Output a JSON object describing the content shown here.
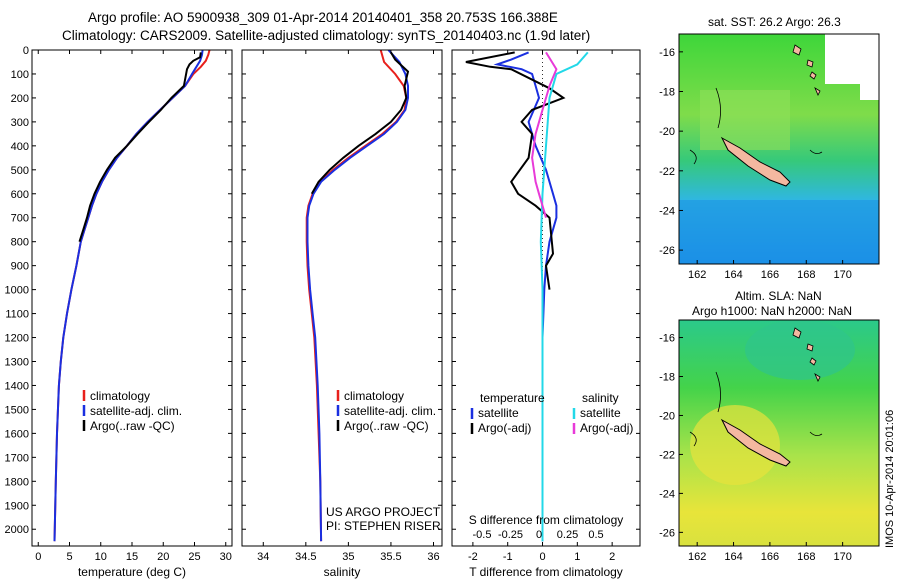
{
  "header": {
    "line1": "Argo profile: AO 5900938_309 01-Apr-2014 20140401_358 20.753S 166.388E",
    "line2": "Climatology: CARS2009. Satellite-adjusted climatology: synTS_20140403.nc (1.9d later)"
  },
  "colors": {
    "climatology": "#e8201c",
    "satellite": "#1a2fe0",
    "argo": "#000000",
    "sat_salinity": "#22d8e8",
    "argo_salinity_adj": "#e83ad8"
  },
  "chart_data": [
    {
      "id": "temperature",
      "type": "line",
      "xlabel": "temperature (deg C)",
      "ylabel": "",
      "xlim": [
        -1,
        31
      ],
      "ylim": [
        0,
        2070
      ],
      "xticks": [
        0,
        5,
        10,
        15,
        20,
        25,
        30
      ],
      "yticks": [
        0,
        100,
        200,
        300,
        400,
        500,
        600,
        700,
        800,
        900,
        1000,
        1100,
        1200,
        1300,
        1400,
        1500,
        1600,
        1700,
        1800,
        1900,
        2000
      ],
      "legend": [
        "climatology",
        "satellite-adj. clim.",
        "Argo(..raw -QC)"
      ],
      "series": [
        {
          "name": "climatology",
          "color": "#e8201c",
          "x": [
            27.4,
            27.2,
            26.8,
            26,
            24.8,
            23.5,
            21.5,
            19.5,
            17.5,
            15.7,
            14.2,
            12.6,
            11.3,
            10.2,
            9.3,
            8.6,
            8.0,
            7.4,
            6.8,
            6.1,
            5.3,
            4.6,
            4.0,
            3.6,
            3.3,
            3.0,
            2.8,
            2.6
          ],
          "y": [
            0,
            20,
            45,
            70,
            100,
            150,
            200,
            250,
            300,
            350,
            400,
            450,
            500,
            550,
            600,
            650,
            700,
            750,
            800,
            900,
            1000,
            1100,
            1200,
            1300,
            1400,
            1600,
            1800,
            2050
          ]
        },
        {
          "name": "satellite-adj. clim.",
          "color": "#1a2fe0",
          "x": [
            26.3,
            26.2,
            25.9,
            25.3,
            24.6,
            23.5,
            21.5,
            19.5,
            17.5,
            15.7,
            14.2,
            12.6,
            11.3,
            10.2,
            9.3,
            8.6,
            8.0,
            7.4,
            6.8,
            6.1,
            5.3,
            4.6,
            4.0,
            3.6,
            3.3,
            3.0,
            2.8,
            2.6
          ],
          "y": [
            0,
            20,
            45,
            70,
            100,
            150,
            200,
            250,
            300,
            350,
            400,
            450,
            500,
            550,
            600,
            650,
            700,
            750,
            800,
            900,
            1000,
            1100,
            1200,
            1300,
            1400,
            1600,
            1800,
            2050
          ]
        },
        {
          "name": "Argo(..raw -QC)",
          "color": "#000000",
          "x": [
            26.0,
            25.9,
            24.8,
            24.2,
            23.8,
            23.3,
            21.3,
            19.6,
            17.7,
            15.9,
            14.2,
            12.3,
            11.0,
            9.9,
            9.0,
            8.3,
            7.8,
            7.2,
            6.6
          ],
          "y": [
            10,
            30,
            45,
            60,
            80,
            150,
            200,
            250,
            300,
            350,
            400,
            450,
            500,
            550,
            600,
            650,
            700,
            750,
            800
          ]
        }
      ]
    },
    {
      "id": "salinity",
      "type": "line",
      "xlabel": "salinity",
      "ylabel": "",
      "xlim": [
        33.75,
        36.1
      ],
      "ylim": [
        0,
        2070
      ],
      "xticks": [
        34,
        34.5,
        35,
        35.5,
        36
      ],
      "xticklabels": [
        "34",
        "34.5",
        "35",
        "35.5",
        "36"
      ],
      "legend": [
        "climatology",
        "satellite-adj. clim.",
        "Argo(..raw -QC)"
      ],
      "annotation": [
        "US ARGO PROJECT",
        "PI: STEPHEN RISER"
      ],
      "series": [
        {
          "name": "climatology",
          "color": "#e8201c",
          "x": [
            35.38,
            35.42,
            35.55,
            35.65,
            35.68,
            35.66,
            35.56,
            35.4,
            35.2,
            35.0,
            34.82,
            34.67,
            34.58,
            34.53,
            34.51,
            34.51,
            34.52,
            34.54,
            34.57,
            34.6,
            34.63,
            34.65,
            34.67,
            34.68
          ],
          "y": [
            0,
            50,
            100,
            150,
            200,
            250,
            300,
            350,
            400,
            450,
            500,
            550,
            600,
            650,
            700,
            800,
            900,
            1000,
            1100,
            1200,
            1400,
            1600,
            1800,
            2050
          ]
        },
        {
          "name": "satellite-adj. clim.",
          "color": "#1a2fe0",
          "x": [
            35.47,
            35.6,
            35.67,
            35.7,
            35.7,
            35.67,
            35.57,
            35.42,
            35.22,
            35.02,
            34.84,
            34.68,
            34.59,
            34.54,
            34.52,
            34.52,
            34.53,
            34.55,
            34.58,
            34.61,
            34.64,
            34.66,
            34.67,
            34.68
          ],
          "y": [
            0,
            50,
            100,
            150,
            200,
            250,
            300,
            350,
            400,
            450,
            500,
            550,
            600,
            650,
            700,
            800,
            900,
            1000,
            1100,
            1200,
            1400,
            1600,
            1800,
            2050
          ]
        },
        {
          "name": "Argo(..raw -QC)",
          "color": "#000000",
          "x": [
            35.5,
            35.55,
            35.7,
            35.66,
            35.68,
            35.62,
            35.5,
            35.32,
            35.12,
            34.94,
            34.78,
            34.65,
            34.57
          ],
          "y": [
            10,
            40,
            90,
            150,
            200,
            250,
            300,
            350,
            400,
            450,
            500,
            550,
            600
          ]
        }
      ]
    },
    {
      "id": "difference",
      "type": "line",
      "xlabel": "T difference from climatology",
      "xlabel_top": "S difference from climatology",
      "xlim": [
        -2.6,
        2.8
      ],
      "ylim": [
        0,
        2070
      ],
      "xticks": [
        -2,
        -1,
        0,
        1,
        2
      ],
      "xticklabels": [
        "-2",
        "-1",
        "0",
        "1",
        "2"
      ],
      "sticklabels": [
        "-0.5",
        "-0.25",
        "0",
        "0.25",
        "0.5"
      ],
      "legend_titles": [
        "temperature",
        "salinity"
      ],
      "legend": [
        "satellite",
        "Argo(-adj)",
        "satellite",
        "Argo(-adj)"
      ],
      "series": [
        {
          "name": "temperature satellite",
          "color": "#1a2fe0",
          "x": [
            -0.4,
            -0.9,
            -1.3,
            -0.6,
            -0.3,
            -0.2,
            -0.1,
            -0.4,
            -0.2,
            0.1,
            0.3,
            0.4,
            0.4,
            0.2,
            0.1,
            0.05,
            0.0,
            0.0,
            0.0
          ],
          "y": [
            10,
            40,
            60,
            80,
            100,
            150,
            200,
            300,
            400,
            500,
            600,
            650,
            700,
            800,
            900,
            1000,
            1200,
            1600,
            2050
          ]
        },
        {
          "name": "temperature Argo(-adj)",
          "color": "#000000",
          "x": [
            -0.8,
            -2.2,
            -1.5,
            -0.9,
            0.2,
            0.6,
            -0.3,
            -0.6,
            -0.3,
            -0.4,
            -0.9,
            -0.7,
            -0.2,
            0.2,
            0.3,
            0.1,
            0.2
          ],
          "y": [
            10,
            50,
            70,
            80,
            160,
            200,
            250,
            300,
            350,
            450,
            550,
            600,
            650,
            700,
            850,
            900,
            1000
          ]
        },
        {
          "name": "salinity satellite",
          "color": "#22d8e8",
          "x": [
            1.3,
            1.0,
            0.4,
            0.2,
            0.1,
            0.0,
            -0.05,
            0.0,
            0.0,
            0.0,
            0.0
          ],
          "y": [
            10,
            60,
            100,
            200,
            400,
            600,
            800,
            1000,
            1200,
            1600,
            2050
          ]
        },
        {
          "name": "salinity Argo(-adj)",
          "color": "#e83ad8",
          "x": [
            0.1,
            0.4,
            0.2,
            0.0,
            -0.2,
            -0.3,
            -0.2,
            -0.1,
            0.0,
            0.1
          ],
          "y": [
            10,
            80,
            150,
            250,
            350,
            450,
            550,
            600,
            650,
            700
          ]
        }
      ]
    },
    {
      "id": "sst-map",
      "type": "heatmap",
      "title": "sat. SST: 26.2 Argo: 26.3",
      "xticks": [
        162,
        164,
        166,
        168,
        170
      ],
      "yticks": [
        -16,
        -18,
        -20,
        -22,
        -24,
        -26
      ],
      "xlim": [
        161,
        172
      ],
      "ylim": [
        -26.7,
        -15.1
      ]
    },
    {
      "id": "sla-map",
      "type": "heatmap",
      "title": "Altim. SLA: NaN",
      "subtitle": "Argo h1000: NaN h2000: NaN",
      "xticks": [
        162,
        164,
        166,
        168,
        170
      ],
      "yticks": [
        -16,
        -18,
        -20,
        -22,
        -24,
        -26
      ],
      "xlim": [
        161,
        172
      ],
      "ylim": [
        -26.7,
        -15.1
      ]
    }
  ],
  "side_label": "IMOS 10-Apr-2014 20:01:06"
}
